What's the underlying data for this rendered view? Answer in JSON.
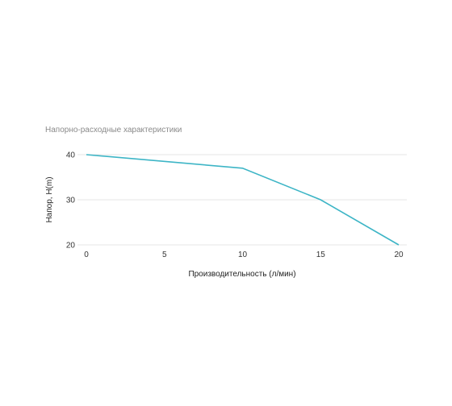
{
  "chart_data": {
    "type": "line",
    "title": "Напорно-расходные характеристики",
    "xlabel": "Производительность (л/мин)",
    "ylabel": "Напор, H(m)",
    "x_ticks": [
      0,
      5,
      10,
      15,
      20
    ],
    "y_ticks": [
      20,
      30,
      40
    ],
    "xlim": [
      0,
      20
    ],
    "ylim": [
      20,
      40
    ],
    "grid": true,
    "series": [
      {
        "x": [
          0,
          10,
          15,
          20
        ],
        "y": [
          40,
          37,
          30,
          20
        ]
      }
    ],
    "colors": {
      "line": "#3db5c6",
      "grid": "#e6e6e6"
    }
  }
}
